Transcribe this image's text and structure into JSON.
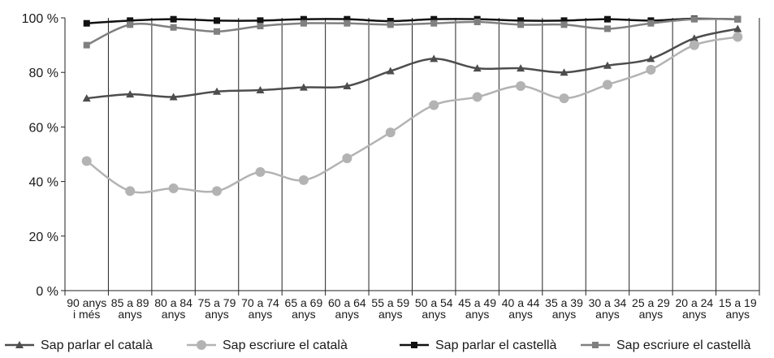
{
  "chart_data": {
    "type": "line",
    "categories": [
      [
        "90 anys",
        "i més"
      ],
      [
        "85 a 89",
        "anys"
      ],
      [
        "80 a 84",
        "anys"
      ],
      [
        "75 a 79",
        "anys"
      ],
      [
        "70 a 74",
        "anys"
      ],
      [
        "65 a 69",
        "anys"
      ],
      [
        "60 a 64",
        "anys"
      ],
      [
        "55 a 59",
        "anys"
      ],
      [
        "50 a 54",
        "anys"
      ],
      [
        "45 a 49",
        "anys"
      ],
      [
        "40 a 44",
        "anys"
      ],
      [
        "35 a 39",
        "anys"
      ],
      [
        "30 a 34",
        "anys"
      ],
      [
        "25 a 29",
        "anys"
      ],
      [
        "20 a 24",
        "anys"
      ],
      [
        "15 a 19",
        "anys"
      ]
    ],
    "yticks": [
      "0 %",
      "20 %",
      "40 %",
      "60 %",
      "80 %",
      "100 %"
    ],
    "ylim": [
      0,
      100
    ],
    "grid": "vertical",
    "legend_position": "bottom",
    "series": [
      {
        "name": "Sap parlar el català",
        "color": "#4d4d4d",
        "marker": "triangle",
        "values": [
          70.5,
          72,
          71,
          73,
          73.5,
          74.5,
          75,
          80.5,
          85,
          81.5,
          81.5,
          80,
          82.5,
          85,
          92.5,
          96
        ]
      },
      {
        "name": "Sap escriure el català",
        "color": "#b3b3b3",
        "marker": "circle",
        "values": [
          47.5,
          36.5,
          37.5,
          36.5,
          43.5,
          40.5,
          48.5,
          58,
          68,
          71,
          75,
          70.5,
          75.5,
          81,
          90,
          93
        ]
      },
      {
        "name": "Sap parlar el castellà",
        "color": "#111111",
        "marker": "square",
        "values": [
          98,
          99,
          99.5,
          99,
          99,
          99.5,
          99.5,
          98.8,
          99.5,
          99.5,
          99,
          99,
          99.5,
          99,
          99.7,
          99.5
        ]
      },
      {
        "name": "Sap escriure el castellà",
        "color": "#808080",
        "marker": "square",
        "values": [
          90,
          97.5,
          96.5,
          95,
          97,
          98,
          98,
          97.5,
          98,
          98.5,
          97.5,
          97.5,
          96,
          98,
          99.5,
          99.5
        ]
      }
    ]
  }
}
